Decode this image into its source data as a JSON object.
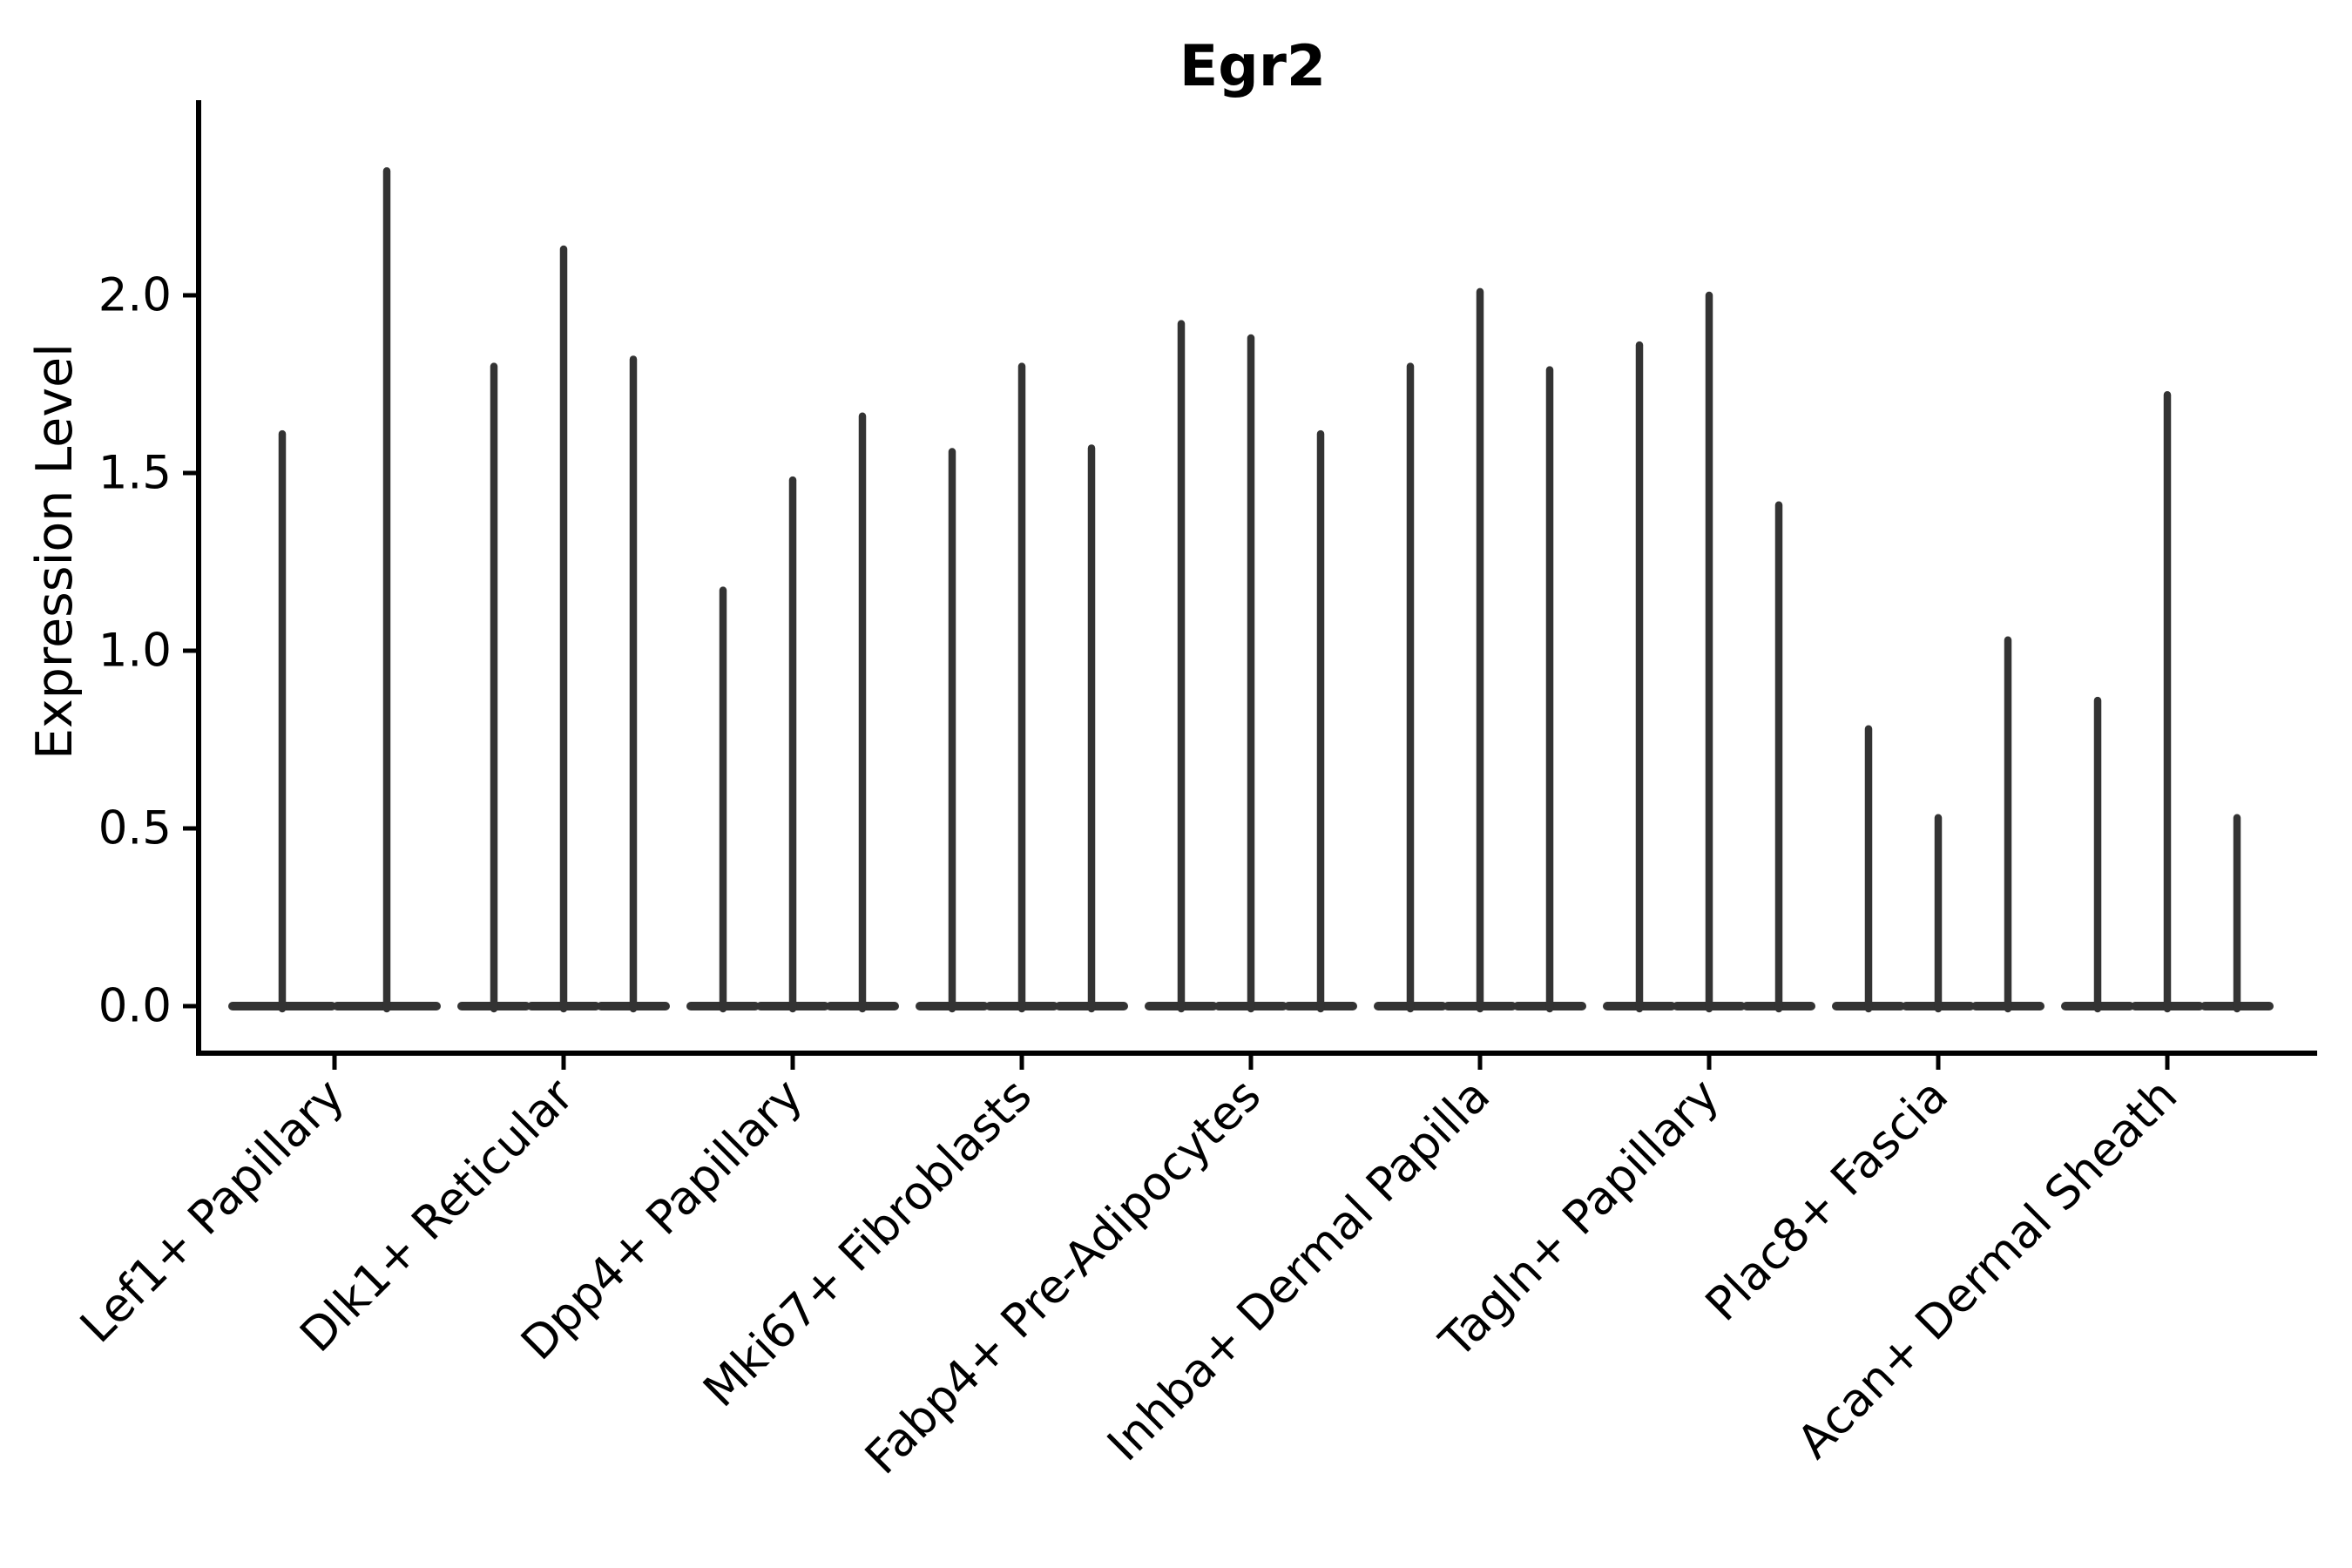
{
  "title": "Egr2",
  "y_axis": {
    "label": "Expression Level",
    "tick_labels": [
      "0.0",
      "0.5",
      "1.0",
      "1.5",
      "2.0"
    ]
  },
  "x_axis": {
    "categories": [
      "Lef1+ Papillary",
      "Dlk1+ Reticular",
      "Dpp4+ Papillary",
      "Mki67+ Fibroblasts",
      "Fabp4+ Pre-Adipocytes",
      "Inhba+ Dermal Papilla",
      "Tagln+ Papillary",
      "Plac8+ Fascia",
      "Acan+ Dermal Sheath"
    ]
  },
  "style": {
    "background": "#ffffff",
    "violin_color": "#333333",
    "axis_color": "#000000",
    "text_color": "#000000"
  },
  "chart_data": {
    "type": "violin",
    "title": "Egr2",
    "xlabel": "",
    "ylabel": "Expression Level",
    "ylim": [
      -0.15,
      2.55
    ],
    "yticks": [
      0.0,
      0.5,
      1.0,
      1.5,
      2.0
    ],
    "grid": false,
    "legend": "none",
    "orientation": "vertical",
    "categories": [
      "Lef1+ Papillary",
      "Dlk1+ Reticular",
      "Dpp4+ Papillary",
      "Mki67+ Fibroblasts",
      "Fabp4+ Pre-Adipocytes",
      "Inhba+ Dermal Papilla",
      "Tagln+ Papillary",
      "Plac8+ Fascia",
      "Acan+ Dermal Sheath"
    ],
    "series": [
      {
        "category": "Lef1+ Papillary",
        "violins_per_group": 2,
        "spike_max_values": [
          1.61,
          2.35
        ]
      },
      {
        "category": "Dlk1+ Reticular",
        "violins_per_group": 3,
        "spike_max_values": [
          1.8,
          2.13,
          1.82
        ]
      },
      {
        "category": "Dpp4+ Papillary",
        "violins_per_group": 3,
        "spike_max_values": [
          1.17,
          1.48,
          1.66
        ]
      },
      {
        "category": "Mki67+ Fibroblasts",
        "violins_per_group": 3,
        "spike_max_values": [
          1.56,
          1.8,
          1.57
        ]
      },
      {
        "category": "Fabp4+ Pre-Adipocytes",
        "violins_per_group": 3,
        "spike_max_values": [
          1.92,
          1.88,
          1.61
        ]
      },
      {
        "category": "Inhba+ Dermal Papilla",
        "violins_per_group": 3,
        "spike_max_values": [
          1.8,
          2.01,
          1.79
        ]
      },
      {
        "category": "Tagln+ Papillary",
        "violins_per_group": 3,
        "spike_max_values": [
          1.86,
          2.0,
          1.41
        ]
      },
      {
        "category": "Plac8+ Fascia",
        "violins_per_group": 3,
        "spike_max_values": [
          0.78,
          0.53,
          1.03
        ]
      },
      {
        "category": "Acan+ Dermal Sheath",
        "violins_per_group": 3,
        "spike_max_values": [
          0.86,
          1.72,
          0.53
        ]
      }
    ],
    "baseline_value": 0.0,
    "description": "Violin plot: each violin is nearly all zeros (flat wide base at 0) with a thin density spike reaching the listed maximum expression value."
  }
}
